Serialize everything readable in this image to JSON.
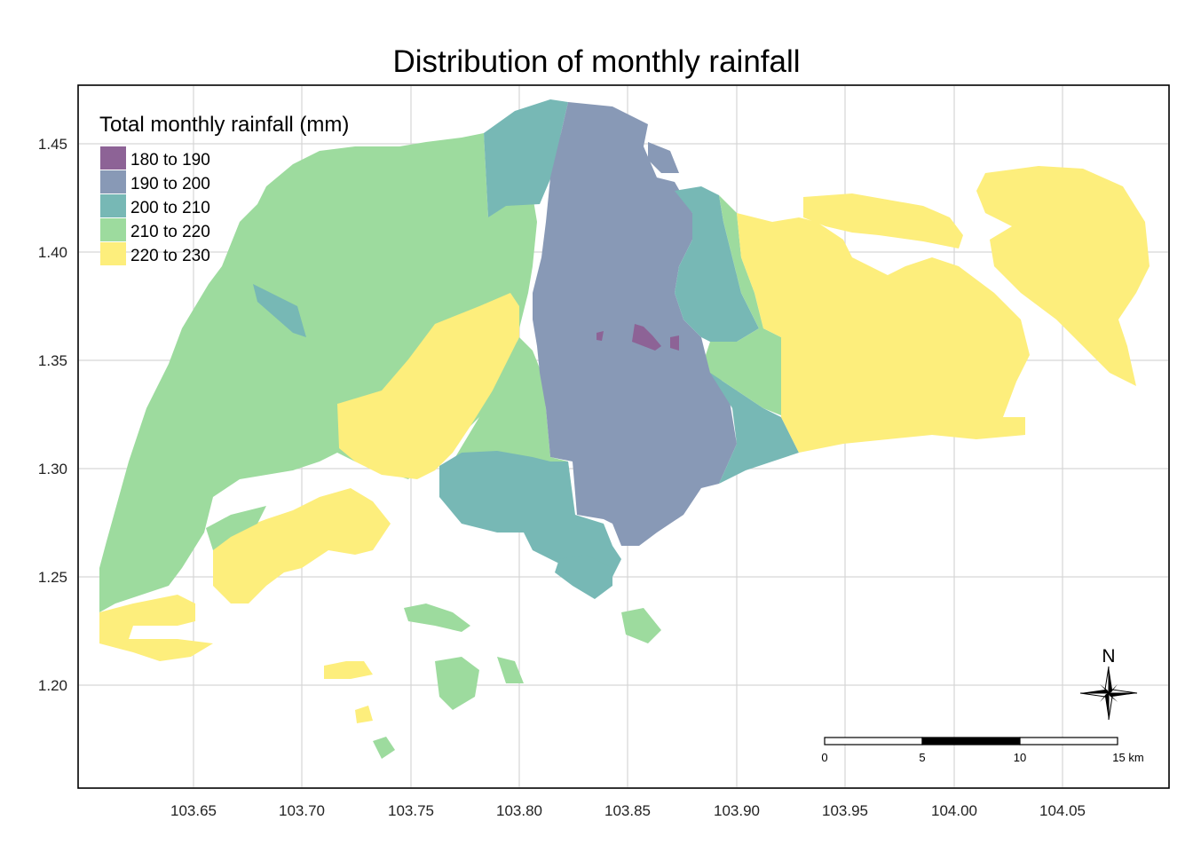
{
  "title": "Distribution of monthly rainfall",
  "legend": {
    "title": "Total monthly rainfall (mm)",
    "items": [
      {
        "label": "180 to 190",
        "color": "#8d6396"
      },
      {
        "label": "190 to 200",
        "color": "#8899b6"
      },
      {
        "label": "200 to 210",
        "color": "#77b8b5"
      },
      {
        "label": "210 to 220",
        "color": "#9ddb9e"
      },
      {
        "label": "220 to 230",
        "color": "#fdee7c"
      }
    ]
  },
  "axes": {
    "x_ticks": [
      "103.65",
      "103.70",
      "103.75",
      "103.80",
      "103.85",
      "103.90",
      "103.95",
      "104.00",
      "104.05"
    ],
    "y_ticks": [
      "1.45",
      "1.40",
      "1.35",
      "1.30",
      "1.25",
      "1.20"
    ],
    "grid": true
  },
  "scale_bar": {
    "labels": [
      "0",
      "5",
      "10",
      "15 km"
    ]
  },
  "north_arrow": {
    "label": "N",
    "icon": "compass-rose-icon"
  }
}
